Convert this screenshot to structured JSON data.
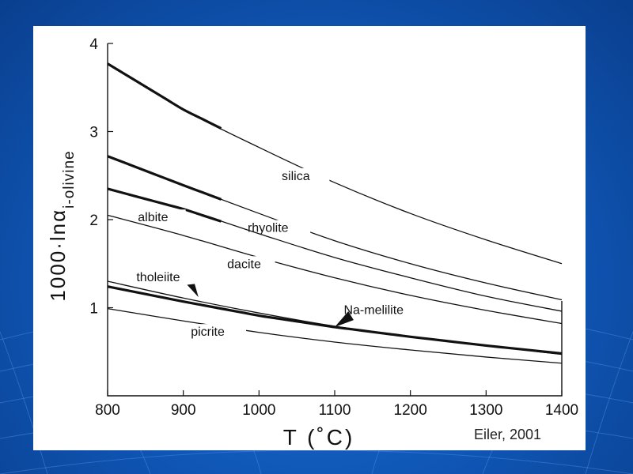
{
  "credit": "Eiler, 2001",
  "colors": {
    "background": "#1a63c4",
    "panel": "#ffffff",
    "ink": "#111111"
  },
  "chart_data": {
    "type": "line",
    "xlabel": "T (˚C)",
    "ylabel_main": "1000·lnα",
    "ylabel_sub": "i-olivine",
    "xlim": [
      800,
      1400
    ],
    "ylim": [
      0,
      4
    ],
    "xticks": [
      800,
      900,
      1000,
      1100,
      1200,
      1300,
      1400
    ],
    "yticks": [
      1,
      2,
      3,
      4
    ],
    "grid": false,
    "series": [
      {
        "name": "silica",
        "x": [
          800,
          900,
          1000,
          1100,
          1200,
          1300,
          1400
        ],
        "y": [
          3.77,
          3.25,
          2.82,
          2.42,
          2.07,
          1.77,
          1.5
        ]
      },
      {
        "name": "rhyolite",
        "x": [
          800,
          900,
          1000,
          1100,
          1200,
          1300,
          1400
        ],
        "y": [
          2.72,
          2.39,
          2.07,
          1.76,
          1.5,
          1.28,
          1.09
        ]
      },
      {
        "name": "albite",
        "x": [
          800,
          900,
          1000,
          1100,
          1200,
          1300,
          1400
        ],
        "y": [
          2.35,
          2.12,
          1.84,
          1.57,
          1.34,
          1.13,
          0.96
        ]
      },
      {
        "name": "dacite",
        "x": [
          800,
          900,
          1000,
          1100,
          1200,
          1300,
          1400
        ],
        "y": [
          2.05,
          1.82,
          1.57,
          1.34,
          1.14,
          0.97,
          0.82
        ]
      },
      {
        "name": "tholeiite",
        "x": [
          800,
          900,
          1000,
          1100,
          1200,
          1300,
          1400
        ],
        "y": [
          1.3,
          1.11,
          0.94,
          0.79,
          0.67,
          0.57,
          0.47
        ]
      },
      {
        "name": "Na-melilite",
        "x": [
          800,
          900,
          1000,
          1100,
          1200,
          1300,
          1400
        ],
        "y": [
          1.24,
          1.07,
          0.91,
          0.78,
          0.67,
          0.57,
          0.48
        ]
      },
      {
        "name": "picrite",
        "x": [
          800,
          900,
          1000,
          1100,
          1200,
          1300,
          1400
        ],
        "y": [
          0.99,
          0.85,
          0.72,
          0.61,
          0.52,
          0.44,
          0.37
        ]
      }
    ]
  }
}
